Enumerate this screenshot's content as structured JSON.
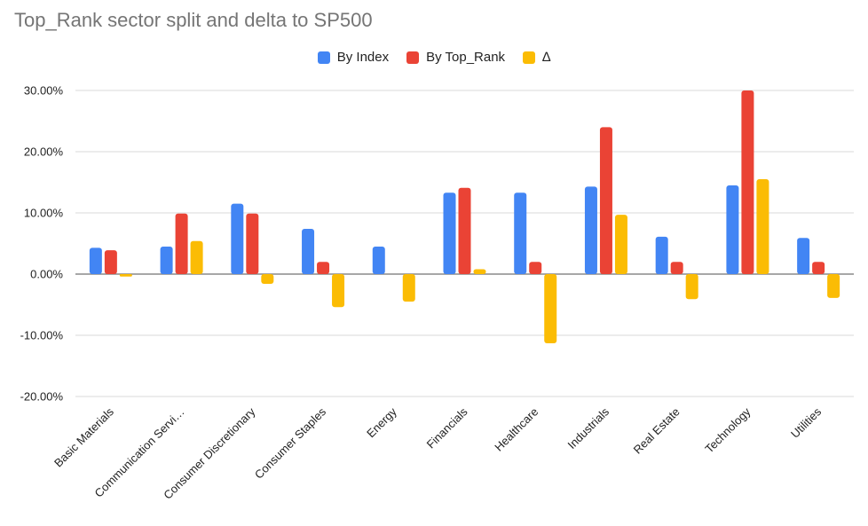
{
  "chart_data": {
    "type": "bar",
    "title": "Top_Rank sector split and delta to SP500",
    "xlabel": "",
    "ylabel": "",
    "ylim": [
      -20,
      30
    ],
    "yticks": [
      -20,
      -10,
      0,
      10,
      20,
      30
    ],
    "ytick_labels": [
      "-20.00%",
      "-10.00%",
      "0.00%",
      "10.00%",
      "20.00%",
      "30.00%"
    ],
    "grid": true,
    "legend_position": "top-center",
    "categories": [
      "Basic Materials",
      "Communication Servi…",
      "Consumer Discretionary",
      "Consumer Staples",
      "Energy",
      "Financials",
      "Healthcare",
      "Industrials",
      "Real Estate",
      "Technology",
      "Utilities"
    ],
    "series": [
      {
        "name": "By Index",
        "color": "#4285F4",
        "values": [
          4.3,
          4.5,
          11.5,
          7.4,
          4.5,
          13.3,
          13.3,
          14.3,
          6.1,
          14.5,
          5.9
        ]
      },
      {
        "name": "By Top_Rank",
        "color": "#EA4335",
        "values": [
          3.9,
          9.9,
          9.9,
          2.0,
          0.0,
          14.1,
          2.0,
          24.0,
          2.0,
          30.0,
          2.0
        ]
      },
      {
        "name": "∆",
        "color": "#FBBC04",
        "values": [
          -0.4,
          5.4,
          -1.6,
          -5.4,
          -4.5,
          0.8,
          -11.3,
          9.7,
          -4.1,
          15.5,
          -3.9
        ]
      }
    ]
  }
}
